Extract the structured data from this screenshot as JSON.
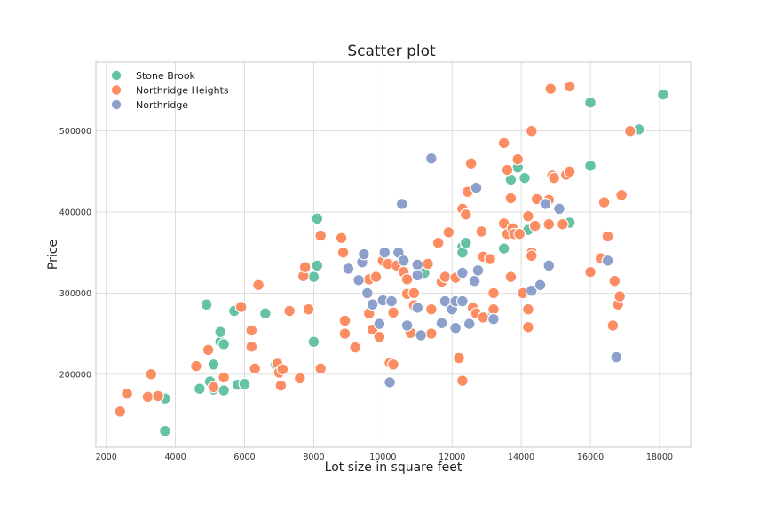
{
  "chart_data": {
    "type": "scatter",
    "title": "Scatter plot",
    "xlabel": "Lot size in square feet",
    "ylabel": "Price",
    "xlim": [
      1700,
      18900
    ],
    "ylim": [
      110000,
      585000
    ],
    "xticks": [
      2000,
      4000,
      6000,
      8000,
      10000,
      12000,
      14000,
      16000,
      18000
    ],
    "yticks": [
      200000,
      300000,
      400000,
      500000
    ],
    "grid": true,
    "legend_position": "top-left",
    "series": [
      {
        "name": "Stone Brook",
        "color": "#66c2a5",
        "points": [
          [
            3700,
            170000
          ],
          [
            3700,
            130000
          ],
          [
            4700,
            182000
          ],
          [
            4900,
            286000
          ],
          [
            5000,
            191000
          ],
          [
            5100,
            181000
          ],
          [
            5100,
            212000
          ],
          [
            5300,
            240000
          ],
          [
            5300,
            252000
          ],
          [
            5400,
            237000
          ],
          [
            5400,
            180000
          ],
          [
            5700,
            278000
          ],
          [
            5800,
            187000
          ],
          [
            6000,
            188000
          ],
          [
            6600,
            275000
          ],
          [
            6900,
            212000
          ],
          [
            8000,
            240000
          ],
          [
            8000,
            320000
          ],
          [
            8100,
            392000
          ],
          [
            8100,
            334000
          ],
          [
            11200,
            325000
          ],
          [
            12300,
            357000
          ],
          [
            12300,
            350000
          ],
          [
            12400,
            362000
          ],
          [
            13100,
            270000
          ],
          [
            13500,
            355000
          ],
          [
            13700,
            440000
          ],
          [
            13900,
            455000
          ],
          [
            14100,
            442000
          ],
          [
            14200,
            378000
          ],
          [
            15400,
            387000
          ],
          [
            16000,
            535000
          ],
          [
            16000,
            457000
          ],
          [
            17400,
            502000
          ],
          [
            18100,
            545000
          ]
        ]
      },
      {
        "name": "Northridge Heights",
        "color": "#fc8d62",
        "points": [
          [
            2400,
            154000
          ],
          [
            2600,
            176000
          ],
          [
            3200,
            172000
          ],
          [
            3300,
            200000
          ],
          [
            3500,
            173000
          ],
          [
            4600,
            210000
          ],
          [
            4950,
            230000
          ],
          [
            5100,
            184000
          ],
          [
            5400,
            196000
          ],
          [
            5900,
            283000
          ],
          [
            6200,
            254000
          ],
          [
            6200,
            234000
          ],
          [
            6300,
            207000
          ],
          [
            6400,
            310000
          ],
          [
            6950,
            213000
          ],
          [
            7000,
            202000
          ],
          [
            7050,
            186000
          ],
          [
            7100,
            206000
          ],
          [
            7300,
            278000
          ],
          [
            7600,
            195000
          ],
          [
            7700,
            321000
          ],
          [
            7750,
            332000
          ],
          [
            7850,
            280000
          ],
          [
            8200,
            207000
          ],
          [
            8200,
            371000
          ],
          [
            8800,
            368000
          ],
          [
            8850,
            350000
          ],
          [
            8900,
            266000
          ],
          [
            8900,
            250000
          ],
          [
            9200,
            233000
          ],
          [
            9600,
            275000
          ],
          [
            9600,
            317000
          ],
          [
            9700,
            255000
          ],
          [
            9800,
            320000
          ],
          [
            9900,
            246000
          ],
          [
            10000,
            340000
          ],
          [
            10150,
            336000
          ],
          [
            10200,
            214000
          ],
          [
            10300,
            276000
          ],
          [
            10300,
            212000
          ],
          [
            10400,
            334000
          ],
          [
            10600,
            326000
          ],
          [
            10700,
            317000
          ],
          [
            10700,
            299000
          ],
          [
            10800,
            251000
          ],
          [
            10900,
            285000
          ],
          [
            10900,
            300000
          ],
          [
            11300,
            336000
          ],
          [
            11400,
            280000
          ],
          [
            11400,
            250000
          ],
          [
            11600,
            362000
          ],
          [
            11700,
            314000
          ],
          [
            11800,
            320000
          ],
          [
            11900,
            375000
          ],
          [
            12100,
            319000
          ],
          [
            12200,
            220000
          ],
          [
            12300,
            192000
          ],
          [
            12300,
            404000
          ],
          [
            12400,
            397000
          ],
          [
            12450,
            425000
          ],
          [
            12550,
            460000
          ],
          [
            12600,
            282000
          ],
          [
            12700,
            275000
          ],
          [
            12850,
            376000
          ],
          [
            12900,
            270000
          ],
          [
            12900,
            345000
          ],
          [
            13100,
            342000
          ],
          [
            13200,
            300000
          ],
          [
            13200,
            280000
          ],
          [
            13500,
            485000
          ],
          [
            13600,
            452000
          ],
          [
            13500,
            386000
          ],
          [
            13600,
            373000
          ],
          [
            13700,
            320000
          ],
          [
            13750,
            380000
          ],
          [
            13700,
            417000
          ],
          [
            13800,
            373000
          ],
          [
            13900,
            465000
          ],
          [
            13950,
            373000
          ],
          [
            14050,
            300000
          ],
          [
            14200,
            280000
          ],
          [
            14200,
            395000
          ],
          [
            14300,
            500000
          ],
          [
            14200,
            258000
          ],
          [
            14300,
            350000
          ],
          [
            14300,
            346000
          ],
          [
            14400,
            383000
          ],
          [
            14450,
            416000
          ],
          [
            14800,
            415000
          ],
          [
            14800,
            385000
          ],
          [
            14850,
            552000
          ],
          [
            14900,
            445000
          ],
          [
            14950,
            442000
          ],
          [
            15200,
            385000
          ],
          [
            15300,
            446000
          ],
          [
            15400,
            555000
          ],
          [
            15400,
            450000
          ],
          [
            16000,
            326000
          ],
          [
            16300,
            343000
          ],
          [
            16400,
            412000
          ],
          [
            16500,
            370000
          ],
          [
            16650,
            260000
          ],
          [
            16700,
            315000
          ],
          [
            16800,
            286000
          ],
          [
            16850,
            296000
          ],
          [
            16900,
            421000
          ],
          [
            17150,
            500000
          ]
        ]
      },
      {
        "name": "Northridge",
        "color": "#8da0cb",
        "points": [
          [
            9000,
            330000
          ],
          [
            9300,
            316000
          ],
          [
            9400,
            338000
          ],
          [
            9450,
            348000
          ],
          [
            9550,
            300000
          ],
          [
            9700,
            286000
          ],
          [
            9900,
            262000
          ],
          [
            10000,
            291000
          ],
          [
            10050,
            350000
          ],
          [
            10200,
            190000
          ],
          [
            10250,
            290000
          ],
          [
            10450,
            350000
          ],
          [
            10550,
            410000
          ],
          [
            10600,
            340000
          ],
          [
            10700,
            260000
          ],
          [
            11000,
            335000
          ],
          [
            11000,
            322000
          ],
          [
            11000,
            282000
          ],
          [
            11100,
            248000
          ],
          [
            11400,
            466000
          ],
          [
            11700,
            263000
          ],
          [
            11800,
            290000
          ],
          [
            12000,
            280000
          ],
          [
            12100,
            290000
          ],
          [
            12100,
            257000
          ],
          [
            12300,
            325000
          ],
          [
            12300,
            290000
          ],
          [
            12500,
            262000
          ],
          [
            12650,
            315000
          ],
          [
            12700,
            430000
          ],
          [
            12750,
            328000
          ],
          [
            13200,
            268000
          ],
          [
            14300,
            303000
          ],
          [
            14550,
            310000
          ],
          [
            14700,
            410000
          ],
          [
            14800,
            334000
          ],
          [
            15100,
            404000
          ],
          [
            16500,
            340000
          ],
          [
            16750,
            221000
          ]
        ]
      }
    ]
  }
}
